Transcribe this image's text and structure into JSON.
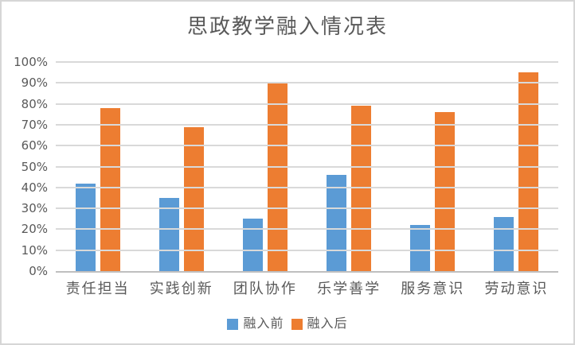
{
  "window": {
    "background": "#FFFFFF",
    "border_color": "#D6D6D6"
  },
  "chart_data": {
    "type": "bar",
    "title": "思政教学融入情况表",
    "xlabel": "",
    "ylabel": "",
    "categories": [
      "责任担当",
      "实践创新",
      "团队协作",
      "乐学善学",
      "服务意识",
      "劳动意识"
    ],
    "series": [
      {
        "name": "融入前",
        "color": "#5B9BD5",
        "values": [
          42,
          35,
          25,
          46,
          22,
          26
        ]
      },
      {
        "name": "融入后",
        "color": "#ED7D31",
        "values": [
          78,
          69,
          90,
          79,
          76,
          95
        ]
      }
    ],
    "ylim": [
      0,
      100
    ],
    "ytick_step": 10,
    "ytick_suffix": "%",
    "grid": true,
    "legend_position": "bottom",
    "colors": {
      "gridline": "#D9D9D9",
      "axis_line": "#BFBFBF",
      "text": "#595959"
    }
  }
}
